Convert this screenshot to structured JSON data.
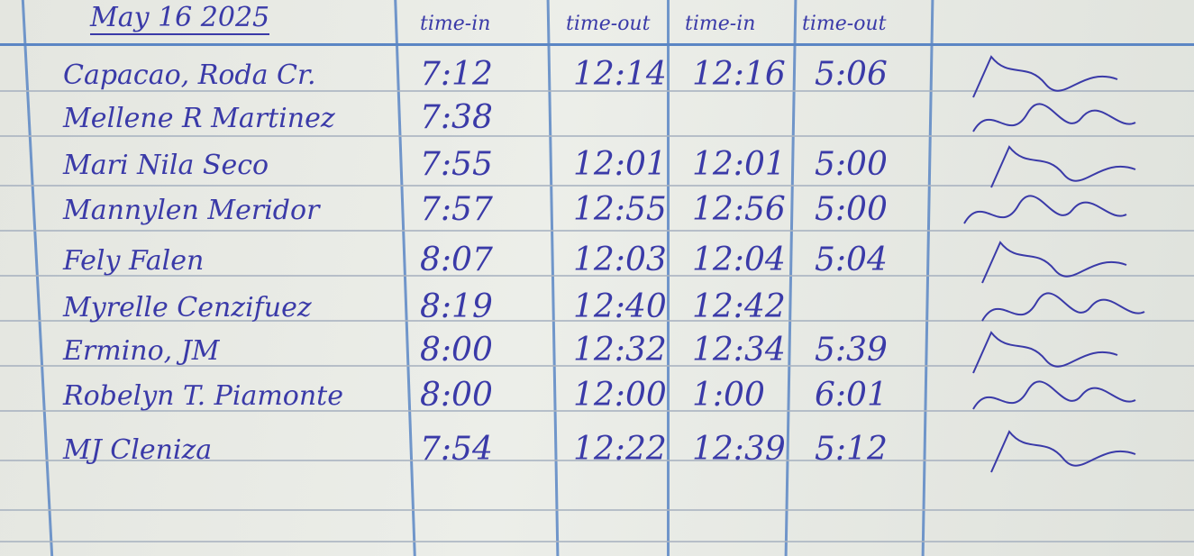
{
  "header": {
    "date": "May 16 2025",
    "columns": [
      "time-in",
      "time-out",
      "time-in",
      "time-out"
    ]
  },
  "rows": [
    {
      "name": "Capacao, Roda Cr.",
      "am_in": "7:12",
      "am_out": "12:14",
      "pm_in": "12:16",
      "pm_out": "5:06"
    },
    {
      "name": "Mellene R Martinez",
      "am_in": "7:38",
      "am_out": "",
      "pm_in": "",
      "pm_out": ""
    },
    {
      "name": "Mari Nila Seco",
      "am_in": "7:55",
      "am_out": "12:01",
      "pm_in": "12:01",
      "pm_out": "5:00"
    },
    {
      "name": "Mannylen Meridor",
      "am_in": "7:57",
      "am_out": "12:55",
      "pm_in": "12:56",
      "pm_out": "5:00"
    },
    {
      "name": "Fely Falen",
      "am_in": "8:07",
      "am_out": "12:03",
      "pm_in": "12:04",
      "pm_out": "5:04"
    },
    {
      "name": "Myrelle Cenzifuez",
      "am_in": "8:19",
      "am_out": "12:40",
      "pm_in": "12:42",
      "pm_out": ""
    },
    {
      "name": "Ermino, JM",
      "am_in": "8:00",
      "am_out": "12:32",
      "pm_in": "12:34",
      "pm_out": "5:39"
    },
    {
      "name": "Robelyn T. Piamonte",
      "am_in": "8:00",
      "am_out": "12:00",
      "pm_in": "1:00",
      "pm_out": "6:01"
    },
    {
      "name": "MJ Cleniza",
      "am_in": "7:54",
      "am_out": "12:22",
      "pm_in": "12:39",
      "pm_out": "5:12"
    }
  ],
  "colors": {
    "ink": "#3a3aa8",
    "rule": "#5b86c4",
    "paper": "#e6e8e3"
  }
}
